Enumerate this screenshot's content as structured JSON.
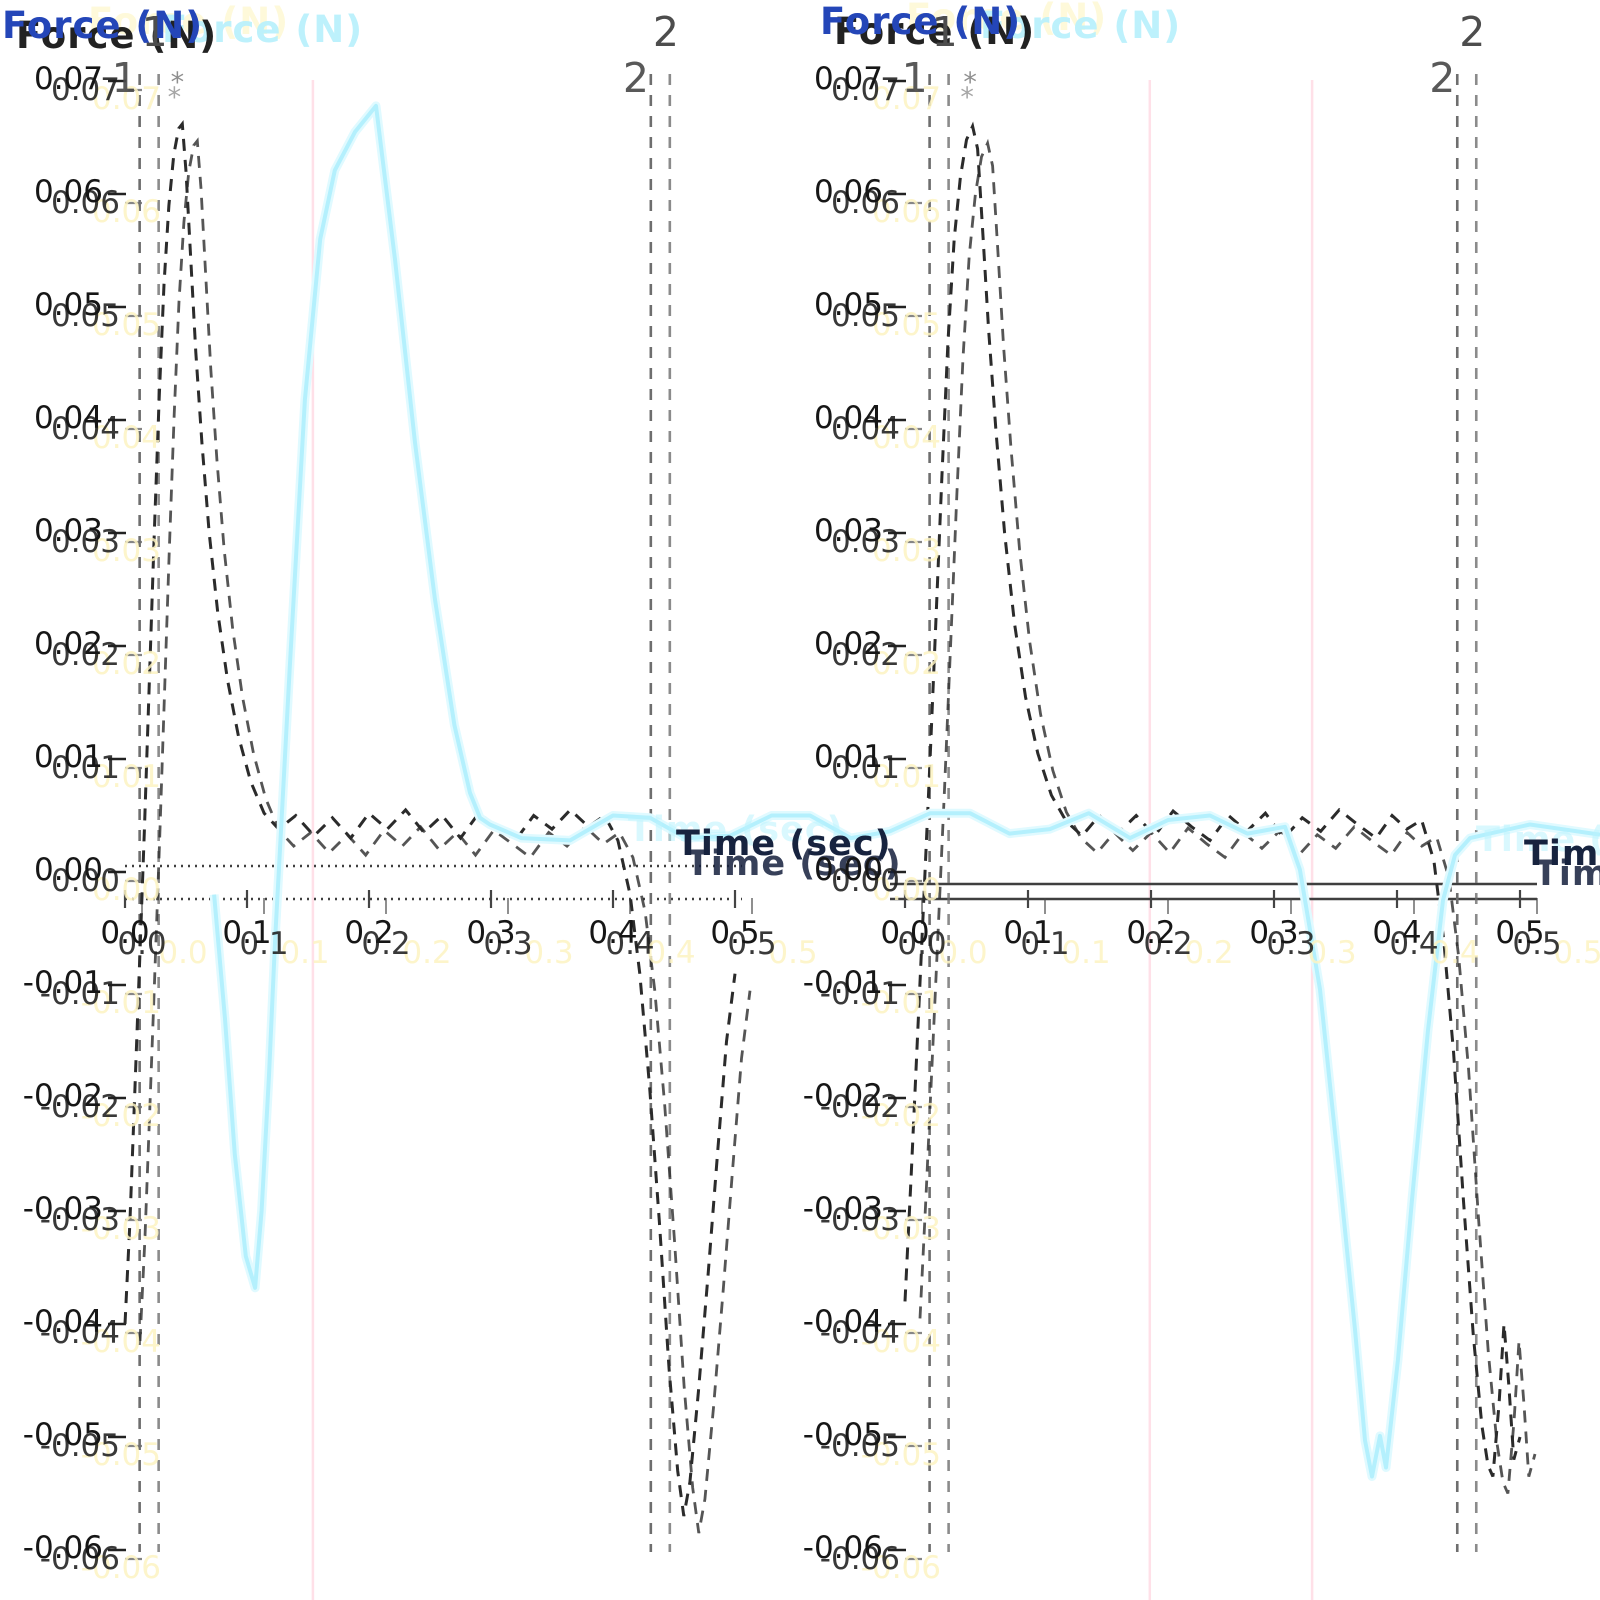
{
  "chart_data": {
    "type": "line",
    "title": "",
    "ylabel": "Force (N)",
    "xlabel": "Time (sec)",
    "legend": "none",
    "grid": false,
    "xlim": [
      0.0,
      0.5
    ],
    "ylim": [
      -0.064,
      0.071
    ],
    "x_ticks": [
      0.0,
      0.1,
      0.2,
      0.3,
      0.4,
      0.5
    ],
    "x_tick_labels": [
      "0.0",
      "0.1",
      "0.2",
      "0.3",
      "0.4",
      "0.5"
    ],
    "y_ticks": [
      0.07,
      0.06,
      0.05,
      0.04,
      0.03,
      0.02,
      0.01,
      0.0,
      -0.01,
      -0.02,
      -0.03,
      -0.04,
      -0.05,
      -0.06
    ],
    "y_tick_labels": [
      "0.07",
      "0.06",
      "0.05",
      "0.04",
      "0.03",
      "0.02",
      "0.01",
      "0.00",
      "-0.01",
      "-0.02",
      "-0.03",
      "-0.04",
      "-0.05",
      "-0.06"
    ],
    "marker_labels": [
      "1",
      "2"
    ],
    "peak_annotation": "*",
    "colors": {
      "force_trace": "#2b2b2b",
      "overlay_trace": "#b4f0fd",
      "overlay_glow": "#e0faff",
      "event_marker": "#6e6e6e",
      "pink_guide": "#ffd0dc",
      "axis_line": "#3f3f3f",
      "title_blue": "#2446b8",
      "title_navy": "#17233f",
      "echo_cyan": "#b9eefb",
      "echo_yellow": "#fdf3c2"
    },
    "panels": [
      {
        "name": "left",
        "event_markers_sec": [
          0.012,
          0.431
        ],
        "pink_guides_sec": [
          0.154
        ],
        "star": {
          "t": 0.044,
          "f": 0.07
        },
        "force_points": [
          [
            0.0,
            -0.04
          ],
          [
            0.004,
            -0.031
          ],
          [
            0.008,
            -0.0195
          ],
          [
            0.012,
            -0.008
          ],
          [
            0.016,
            0.004
          ],
          [
            0.02,
            0.017
          ],
          [
            0.024,
            0.03
          ],
          [
            0.028,
            0.042
          ],
          [
            0.032,
            0.052
          ],
          [
            0.036,
            0.059
          ],
          [
            0.04,
            0.0635
          ],
          [
            0.044,
            0.0658
          ],
          [
            0.047,
            0.0662
          ],
          [
            0.05,
            0.062
          ],
          [
            0.054,
            0.054
          ],
          [
            0.058,
            0.046
          ],
          [
            0.063,
            0.038
          ],
          [
            0.069,
            0.03
          ],
          [
            0.076,
            0.023
          ],
          [
            0.084,
            0.017
          ],
          [
            0.093,
            0.012
          ],
          [
            0.103,
            0.008
          ],
          [
            0.114,
            0.0052
          ],
          [
            0.126,
            0.0038
          ],
          [
            0.14,
            0.005
          ],
          [
            0.155,
            0.0032
          ],
          [
            0.17,
            0.0048
          ],
          [
            0.185,
            0.003
          ],
          [
            0.2,
            0.0052
          ],
          [
            0.215,
            0.0038
          ],
          [
            0.23,
            0.0055
          ],
          [
            0.245,
            0.0035
          ],
          [
            0.26,
            0.005
          ],
          [
            0.275,
            0.003
          ],
          [
            0.29,
            0.0052
          ],
          [
            0.305,
            0.004
          ],
          [
            0.32,
            0.0028
          ],
          [
            0.335,
            0.005
          ],
          [
            0.35,
            0.0038
          ],
          [
            0.365,
            0.0055
          ],
          [
            0.38,
            0.004
          ],
          [
            0.393,
            0.005
          ],
          [
            0.404,
            0.0028
          ],
          [
            0.414,
            -0.002
          ],
          [
            0.422,
            -0.009
          ],
          [
            0.43,
            -0.019
          ],
          [
            0.438,
            -0.031
          ],
          [
            0.446,
            -0.044
          ],
          [
            0.453,
            -0.053
          ],
          [
            0.458,
            -0.057
          ],
          [
            0.463,
            -0.054
          ],
          [
            0.47,
            -0.046
          ],
          [
            0.478,
            -0.0355
          ],
          [
            0.486,
            -0.0245
          ],
          [
            0.493,
            -0.015
          ],
          [
            0.5,
            -0.009
          ]
        ]
      },
      {
        "name": "right",
        "event_markers_sec": [
          0.02,
          0.449
        ],
        "pink_guides_sec": [
          0.199,
          0.331
        ],
        "star": {
          "t": 0.054,
          "f": 0.07
        },
        "force_points": [
          [
            0.0,
            -0.038
          ],
          [
            0.005,
            -0.027
          ],
          [
            0.01,
            -0.015
          ],
          [
            0.015,
            -0.003
          ],
          [
            0.02,
            0.009
          ],
          [
            0.025,
            0.022
          ],
          [
            0.03,
            0.035
          ],
          [
            0.035,
            0.047
          ],
          [
            0.04,
            0.056
          ],
          [
            0.045,
            0.0615
          ],
          [
            0.05,
            0.0648
          ],
          [
            0.055,
            0.066
          ],
          [
            0.059,
            0.064
          ],
          [
            0.063,
            0.057
          ],
          [
            0.068,
            0.048
          ],
          [
            0.074,
            0.039
          ],
          [
            0.081,
            0.03
          ],
          [
            0.089,
            0.022
          ],
          [
            0.098,
            0.0155
          ],
          [
            0.108,
            0.0105
          ],
          [
            0.119,
            0.0068
          ],
          [
            0.131,
            0.0045
          ],
          [
            0.144,
            0.0032
          ],
          [
            0.158,
            0.005
          ],
          [
            0.173,
            0.0034
          ],
          [
            0.188,
            0.005
          ],
          [
            0.203,
            0.0032
          ],
          [
            0.218,
            0.0054
          ],
          [
            0.233,
            0.004
          ],
          [
            0.248,
            0.0028
          ],
          [
            0.263,
            0.005
          ],
          [
            0.278,
            0.0036
          ],
          [
            0.293,
            0.0052
          ],
          [
            0.308,
            0.003
          ],
          [
            0.323,
            0.0048
          ],
          [
            0.338,
            0.0036
          ],
          [
            0.353,
            0.0055
          ],
          [
            0.368,
            0.0042
          ],
          [
            0.383,
            0.003
          ],
          [
            0.396,
            0.005
          ],
          [
            0.408,
            0.0038
          ],
          [
            0.42,
            0.0046
          ],
          [
            0.43,
            0.001
          ],
          [
            0.438,
            -0.006
          ],
          [
            0.446,
            -0.016
          ],
          [
            0.454,
            -0.029
          ],
          [
            0.462,
            -0.041
          ],
          [
            0.469,
            -0.049
          ],
          [
            0.474,
            -0.0525
          ],
          [
            0.478,
            -0.0535
          ],
          [
            0.483,
            -0.047
          ],
          [
            0.487,
            -0.04
          ],
          [
            0.491,
            -0.0455
          ],
          [
            0.495,
            -0.052
          ],
          [
            0.5,
            -0.05
          ]
        ]
      }
    ],
    "overlay": {
      "name": "overlay-trace",
      "coordinate_space": "left-panel-seconds",
      "points": [
        [
          0.073,
          -0.002
        ],
        [
          0.082,
          -0.013
        ],
        [
          0.09,
          -0.025
        ],
        [
          0.099,
          -0.034
        ],
        [
          0.1066,
          -0.0368
        ],
        [
          0.112,
          -0.03
        ],
        [
          0.118,
          -0.018
        ],
        [
          0.123,
          -0.006
        ],
        [
          0.128,
          0.004
        ],
        [
          0.135,
          0.018
        ],
        [
          0.1475,
          0.0418
        ],
        [
          0.16,
          0.056
        ],
        [
          0.172,
          0.0621
        ],
        [
          0.1885,
          0.0655
        ],
        [
          0.2057,
          0.0678
        ],
        [
          0.2213,
          0.0542
        ],
        [
          0.2377,
          0.038
        ],
        [
          0.2541,
          0.0241
        ],
        [
          0.27,
          0.013
        ],
        [
          0.2828,
          0.007
        ],
        [
          0.291,
          0.0048
        ],
        [
          0.299,
          0.0042
        ],
        [
          0.325,
          0.003
        ],
        [
          0.3648,
          0.0028
        ],
        [
          0.4,
          0.005
        ],
        [
          0.4303,
          0.0048
        ],
        [
          0.46,
          0.003
        ],
        [
          0.4959,
          0.0032
        ],
        [
          0.53,
          0.005
        ],
        [
          0.5615,
          0.005
        ],
        [
          0.595,
          0.003
        ],
        [
          0.627,
          0.0036
        ],
        [
          0.66,
          0.0052
        ],
        [
          0.6926,
          0.0052
        ],
        [
          0.725,
          0.0034
        ],
        [
          0.758,
          0.0038
        ],
        [
          0.79,
          0.0052
        ],
        [
          0.8238,
          0.003
        ],
        [
          0.855,
          0.0046
        ],
        [
          0.8893,
          0.005
        ],
        [
          0.92,
          0.0034
        ],
        [
          0.9508,
          0.004
        ],
        [
          0.963,
          0.0002
        ],
        [
          0.9795,
          -0.0104
        ],
        [
          0.9959,
          -0.0273
        ],
        [
          1.0082,
          -0.0405
        ],
        [
          1.0164,
          -0.0503
        ],
        [
          1.0221,
          -0.0535
        ],
        [
          1.0287,
          -0.0499
        ],
        [
          1.0336,
          -0.0527
        ],
        [
          1.0434,
          -0.0432
        ],
        [
          1.0549,
          -0.029
        ],
        [
          1.068,
          -0.014
        ],
        [
          1.0803,
          -0.0025
        ],
        [
          1.0902,
          0.0015
        ],
        [
          1.1025,
          0.003
        ],
        [
          1.1516,
          0.0042
        ],
        [
          1.209,
          0.0033
        ]
      ]
    }
  }
}
